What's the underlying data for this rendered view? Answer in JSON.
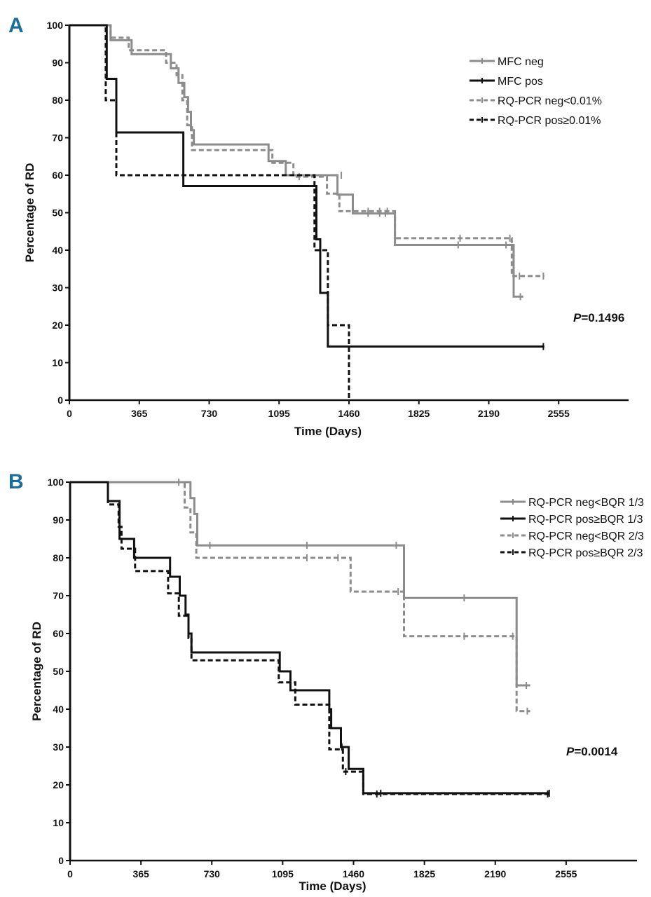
{
  "chart_data": [
    {
      "type": "line",
      "panel": "A",
      "title": "",
      "xlabel": "Time (Days)",
      "ylabel": "Percentage of RD",
      "xlim": [
        0,
        2920
      ],
      "ylim": [
        0,
        100
      ],
      "xticks": [
        0,
        365,
        730,
        1095,
        1460,
        1825,
        2190,
        2555
      ],
      "yticks": [
        0,
        10,
        20,
        30,
        40,
        50,
        60,
        70,
        80,
        90,
        100
      ],
      "p_value": {
        "label": "P",
        "value": "=0.1496"
      },
      "legend_position": "top-right",
      "series": [
        {
          "name": "MFC neg",
          "color": "#8c8c8c",
          "dash": "solid",
          "steps": [
            [
              0,
              100
            ],
            [
              215,
              100
            ],
            [
              215,
              96
            ],
            [
              325,
              96
            ],
            [
              325,
              92.3
            ],
            [
              530,
              92.3
            ],
            [
              530,
              88.5
            ],
            [
              570,
              88.5
            ],
            [
              570,
              84.6
            ],
            [
              600,
              84.6
            ],
            [
              600,
              80.8
            ],
            [
              620,
              80.8
            ],
            [
              620,
              76.9
            ],
            [
              635,
              76.9
            ],
            [
              635,
              72
            ],
            [
              650,
              72
            ],
            [
              650,
              68.2
            ],
            [
              1040,
              68.2
            ],
            [
              1040,
              63.8
            ],
            [
              1130,
              63.8
            ],
            [
              1130,
              60
            ],
            [
              1400,
              60
            ],
            [
              1400,
              54.8
            ],
            [
              1480,
              54.8
            ],
            [
              1480,
              49.8
            ],
            [
              1700,
              49.8
            ],
            [
              1700,
              41.4
            ],
            [
              2320,
              41.4
            ],
            [
              2320,
              27.6
            ],
            [
              2370,
              27.6
            ]
          ],
          "censored": [
            [
              1420,
              60
            ],
            [
              1560,
              49.8
            ],
            [
              1620,
              49.8
            ],
            [
              1650,
              49.8
            ],
            [
              2030,
              41.4
            ],
            [
              2280,
              41.4
            ],
            [
              2355,
              27.6
            ]
          ]
        },
        {
          "name": "MFC pos",
          "color": "#111111",
          "dash": "solid",
          "steps": [
            [
              0,
              100
            ],
            [
              195,
              100
            ],
            [
              195,
              85.7
            ],
            [
              245,
              85.7
            ],
            [
              245,
              71.4
            ],
            [
              595,
              71.4
            ],
            [
              595,
              57.1
            ],
            [
              1290,
              57.1
            ],
            [
              1290,
              42.9
            ],
            [
              1310,
              42.9
            ],
            [
              1310,
              28.6
            ],
            [
              1350,
              28.6
            ],
            [
              1350,
              14.3
            ],
            [
              2480,
              14.3
            ]
          ],
          "censored": [
            [
              2475,
              14.3
            ]
          ]
        },
        {
          "name": "RQ-PCR neg<0.01%",
          "color": "#8c8c8c",
          "dash": "dashed",
          "steps": [
            [
              0,
              100
            ],
            [
              215,
              100
            ],
            [
              215,
              96.7
            ],
            [
              310,
              96.7
            ],
            [
              310,
              93.3
            ],
            [
              505,
              93.3
            ],
            [
              505,
              90
            ],
            [
              560,
              90
            ],
            [
              560,
              86.7
            ],
            [
              590,
              86.7
            ],
            [
              590,
              80
            ],
            [
              615,
              80
            ],
            [
              615,
              73.3
            ],
            [
              640,
              73.3
            ],
            [
              640,
              66.7
            ],
            [
              1060,
              66.7
            ],
            [
              1060,
              63.3
            ],
            [
              1170,
              63.3
            ],
            [
              1170,
              59.6
            ],
            [
              1345,
              59.6
            ],
            [
              1345,
              55.1
            ],
            [
              1410,
              55.1
            ],
            [
              1410,
              50.4
            ],
            [
              1700,
              50.4
            ],
            [
              1700,
              43.2
            ],
            [
              2310,
              43.2
            ],
            [
              2310,
              33.1
            ],
            [
              2480,
              33.1
            ]
          ],
          "censored": [
            [
              1200,
              59.6
            ],
            [
              1560,
              50.4
            ],
            [
              1620,
              50.4
            ],
            [
              1660,
              50.4
            ],
            [
              2040,
              43.2
            ],
            [
              2300,
              43.2
            ],
            [
              2350,
              33.1
            ],
            [
              2475,
              33.1
            ]
          ]
        },
        {
          "name": "RQ-PCR pos≥0.01%",
          "color": "#111111",
          "dash": "dashed",
          "steps": [
            [
              0,
              100
            ],
            [
              190,
              100
            ],
            [
              190,
              80
            ],
            [
              245,
              80
            ],
            [
              245,
              60
            ],
            [
              1280,
              60
            ],
            [
              1280,
              40
            ],
            [
              1350,
              40
            ],
            [
              1350,
              20
            ],
            [
              1460,
              20
            ],
            [
              1460,
              0
            ]
          ],
          "censored": []
        }
      ]
    },
    {
      "type": "line",
      "panel": "B",
      "title": "",
      "xlabel": "Time (Days)",
      "ylabel": "Percentage of RD",
      "xlim": [
        0,
        2920
      ],
      "ylim": [
        0,
        100
      ],
      "xticks": [
        0,
        365,
        730,
        1095,
        1460,
        1825,
        2190,
        2555
      ],
      "yticks": [
        0,
        10,
        20,
        30,
        40,
        50,
        60,
        70,
        80,
        90,
        100
      ],
      "p_value": {
        "label": "P",
        "value": "=0.0014"
      },
      "legend_position": "top-right",
      "series": [
        {
          "name": "RQ-PCR neg<BQR 1/3",
          "color": "#8c8c8c",
          "dash": "solid",
          "steps": [
            [
              0,
              100
            ],
            [
              620,
              100
            ],
            [
              620,
              95.8
            ],
            [
              640,
              95.8
            ],
            [
              640,
              91.6
            ],
            [
              655,
              91.6
            ],
            [
              655,
              83.3
            ],
            [
              1720,
              83.3
            ],
            [
              1720,
              69.4
            ],
            [
              2300,
              69.4
            ],
            [
              2300,
              46.3
            ],
            [
              2370,
              46.3
            ]
          ],
          "censored": [
            [
              560,
              100
            ],
            [
              720,
              83.3
            ],
            [
              1220,
              83.3
            ],
            [
              1680,
              83.3
            ],
            [
              2030,
              69.4
            ],
            [
              2350,
              46.3
            ]
          ]
        },
        {
          "name": "RQ-PCR pos≥BQR 1/3",
          "color": "#111111",
          "dash": "solid",
          "steps": [
            [
              0,
              100
            ],
            [
              195,
              100
            ],
            [
              195,
              95
            ],
            [
              255,
              95
            ],
            [
              255,
              85
            ],
            [
              330,
              85
            ],
            [
              330,
              80
            ],
            [
              515,
              80
            ],
            [
              515,
              75
            ],
            [
              565,
              75
            ],
            [
              565,
              70
            ],
            [
              595,
              70
            ],
            [
              595,
              65
            ],
            [
              610,
              65
            ],
            [
              610,
              60
            ],
            [
              625,
              60
            ],
            [
              625,
              55
            ],
            [
              1080,
              55
            ],
            [
              1080,
              50
            ],
            [
              1135,
              50
            ],
            [
              1135,
              45
            ],
            [
              1335,
              45
            ],
            [
              1335,
              40
            ],
            [
              1345,
              40
            ],
            [
              1345,
              35
            ],
            [
              1395,
              35
            ],
            [
              1395,
              30
            ],
            [
              1435,
              30
            ],
            [
              1435,
              24.2
            ],
            [
              1510,
              24.2
            ],
            [
              1510,
              17.8
            ],
            [
              2470,
              17.8
            ]
          ],
          "censored": [
            [
              1400,
              30
            ],
            [
              1600,
              17.8
            ],
            [
              2468,
              17.8
            ]
          ]
        },
        {
          "name": "RQ-PCR neg<BQR 2/3",
          "color": "#8c8c8c",
          "dash": "dashed",
          "steps": [
            [
              0,
              100
            ],
            [
              590,
              100
            ],
            [
              590,
              93.3
            ],
            [
              620,
              93.3
            ],
            [
              620,
              86.7
            ],
            [
              650,
              86.7
            ],
            [
              650,
              80
            ],
            [
              1445,
              80
            ],
            [
              1445,
              71.1
            ],
            [
              1720,
              71.1
            ],
            [
              1720,
              59.3
            ],
            [
              2300,
              59.3
            ],
            [
              2300,
              39.5
            ],
            [
              2370,
              39.5
            ]
          ],
          "censored": [
            [
              1220,
              80
            ],
            [
              1380,
              80
            ],
            [
              1690,
              71.1
            ],
            [
              2030,
              59.3
            ],
            [
              2280,
              59.3
            ],
            [
              2355,
              39.5
            ]
          ]
        },
        {
          "name": "RQ-PCR pos≥BQR 2/3",
          "color": "#111111",
          "dash": "dashed",
          "steps": [
            [
              0,
              100
            ],
            [
              195,
              100
            ],
            [
              195,
              94.1
            ],
            [
              250,
              94.1
            ],
            [
              250,
              88.2
            ],
            [
              265,
              88.2
            ],
            [
              265,
              82.4
            ],
            [
              335,
              82.4
            ],
            [
              335,
              76.5
            ],
            [
              505,
              76.5
            ],
            [
              505,
              70.6
            ],
            [
              560,
              70.6
            ],
            [
              560,
              64.7
            ],
            [
              610,
              64.7
            ],
            [
              610,
              58.8
            ],
            [
              625,
              58.8
            ],
            [
              625,
              52.9
            ],
            [
              1075,
              52.9
            ],
            [
              1075,
              47.1
            ],
            [
              1160,
              47.1
            ],
            [
              1160,
              41.2
            ],
            [
              1335,
              41.2
            ],
            [
              1335,
              29.4
            ],
            [
              1405,
              29.4
            ],
            [
              1405,
              23.5
            ],
            [
              1510,
              23.5
            ],
            [
              1510,
              17.6
            ],
            [
              2470,
              17.6
            ]
          ],
          "censored": [
            [
              1420,
              23.5
            ],
            [
              1580,
              17.6
            ],
            [
              2460,
              17.6
            ]
          ]
        }
      ]
    }
  ],
  "panels": [
    {
      "letter": "A"
    },
    {
      "letter": "B"
    }
  ]
}
